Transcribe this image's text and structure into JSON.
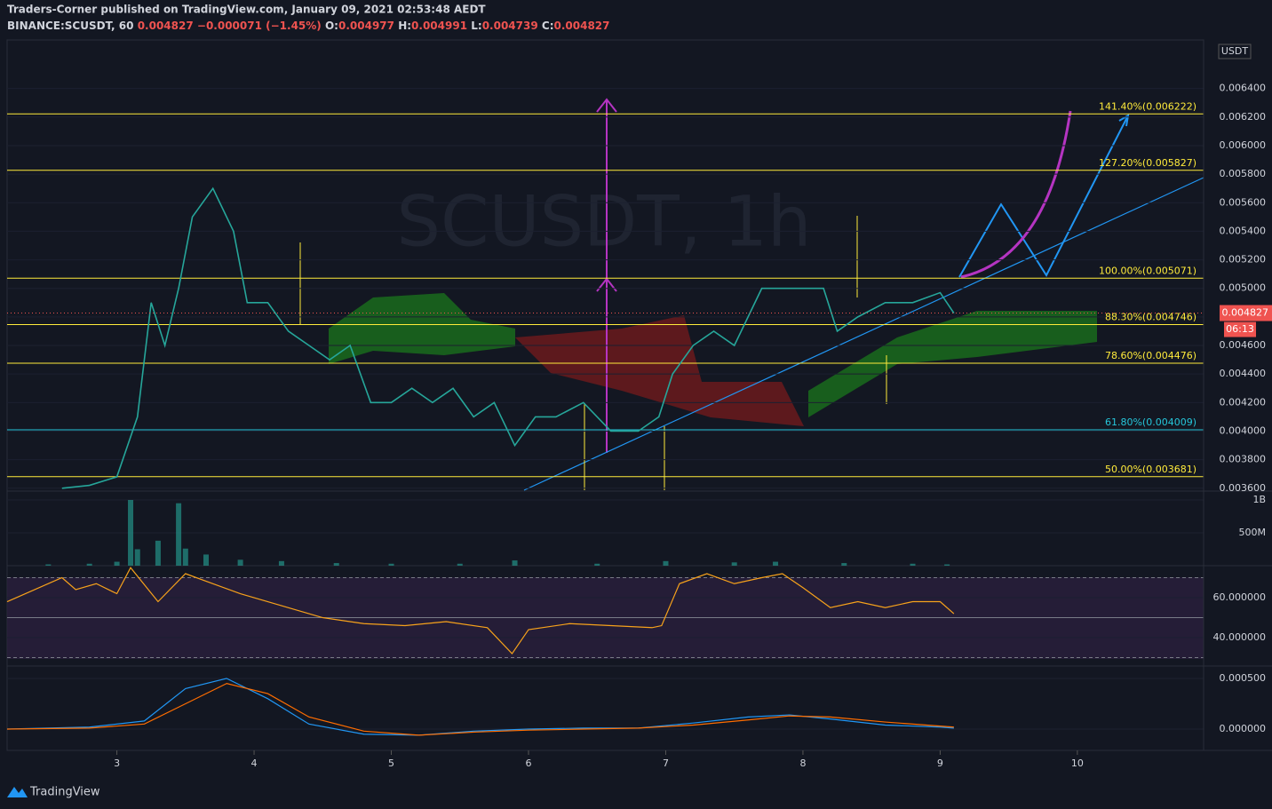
{
  "header": {
    "publisher": "Traders-Corner published on TradingView.com, January 09, 2021 02:53:48 AEDT",
    "symbol": "BINANCE:SCUSDT, 60",
    "last": "0.004827",
    "change": "−0.000071 (−1.45%)",
    "ohlc": [
      {
        "key": "O:",
        "value": "0.004977"
      },
      {
        "key": "H:",
        "value": "0.004991"
      },
      {
        "key": "L:",
        "value": "0.004739"
      },
      {
        "key": "C:",
        "value": "0.004827"
      }
    ],
    "currency": "USDT",
    "watermark": "SCUSDT, 1h",
    "countdown": "06:13",
    "footer": "TradingView"
  },
  "chart_data": [
    {
      "type": "line",
      "name": "price",
      "color": "#26a69a",
      "x": [
        2.6,
        2.8,
        3.0,
        3.15,
        3.25,
        3.35,
        3.45,
        3.55,
        3.7,
        3.85,
        3.95,
        4.1,
        4.25,
        4.4,
        4.55,
        4.7,
        4.85,
        5.0,
        5.15,
        5.3,
        5.45,
        5.6,
        5.75,
        5.9,
        6.05,
        6.2,
        6.4,
        6.6,
        6.8,
        6.95,
        7.05,
        7.2,
        7.35,
        7.5,
        7.6,
        7.7,
        7.85,
        8.0,
        8.15,
        8.25,
        8.4,
        8.6,
        8.8,
        9.0,
        9.1
      ],
      "values": [
        0.0036,
        0.00362,
        0.00368,
        0.0041,
        0.0049,
        0.0046,
        0.005,
        0.0055,
        0.0057,
        0.0054,
        0.0049,
        0.0049,
        0.0047,
        0.0046,
        0.0045,
        0.0046,
        0.0042,
        0.0042,
        0.0043,
        0.0042,
        0.0043,
        0.0041,
        0.0042,
        0.0039,
        0.0041,
        0.0041,
        0.0042,
        0.004,
        0.004,
        0.0041,
        0.0044,
        0.0046,
        0.0047,
        0.0046,
        0.0048,
        0.005,
        0.005,
        0.005,
        0.005,
        0.0047,
        0.0048,
        0.0049,
        0.0049,
        0.00497,
        0.004827
      ],
      "ylim": [
        0.00358,
        0.00674
      ],
      "yticks": [
        {
          "value": 0.0036,
          "label": "0.003600"
        },
        {
          "value": 0.0038,
          "label": "0.003800"
        },
        {
          "value": 0.004,
          "label": "0.004000"
        },
        {
          "value": 0.0042,
          "label": "0.004200"
        },
        {
          "value": 0.0044,
          "label": "0.004400"
        },
        {
          "value": 0.0046,
          "label": "0.004600"
        },
        {
          "value": 0.0048,
          "label": "0.004800"
        },
        {
          "value": 0.005,
          "label": "0.005000"
        },
        {
          "value": 0.0052,
          "label": "0.005200"
        },
        {
          "value": 0.0054,
          "label": "0.005400"
        },
        {
          "value": 0.0056,
          "label": "0.005600"
        },
        {
          "value": 0.0058,
          "label": "0.005800"
        },
        {
          "value": 0.006,
          "label": "0.006000"
        },
        {
          "value": 0.0062,
          "label": "0.006200"
        },
        {
          "value": 0.0064,
          "label": "0.006400"
        }
      ],
      "last_price": 0.004827,
      "fib_levels": [
        {
          "value": 0.006222,
          "label": "141.40%(0.006222)"
        },
        {
          "value": 0.005827,
          "label": "127.20%(0.005827)"
        },
        {
          "value": 0.005071,
          "label": "100.00%(0.005071)"
        },
        {
          "value": 0.004746,
          "label": "88.30%(0.004746)"
        },
        {
          "value": 0.004476,
          "label": "78.60%(0.004476)"
        },
        {
          "value": 0.004009,
          "label": "61.80%(0.004009)"
        },
        {
          "value": 0.003681,
          "label": "50.00%(0.003681)"
        }
      ],
      "fib_colors": [
        "#ffeb3b",
        "#ffeb3b",
        "#ffeb3b",
        "#ffeb3b",
        "#ffeb3b",
        "#26c6da",
        "#ffeb3b"
      ]
    },
    {
      "type": "bar",
      "name": "volume",
      "color": "#26a69a",
      "x": [
        2.5,
        2.8,
        3.0,
        3.1,
        3.15,
        3.3,
        3.45,
        3.5,
        3.65,
        3.9,
        4.2,
        4.6,
        5.0,
        5.5,
        5.9,
        6.5,
        7.0,
        7.5,
        7.8,
        8.3,
        8.8,
        9.05
      ],
      "values": [
        20000000,
        30000000,
        60000000,
        1000000000,
        250000000,
        380000000,
        950000000,
        260000000,
        170000000,
        90000000,
        70000000,
        40000000,
        30000000,
        30000000,
        80000000,
        30000000,
        70000000,
        50000000,
        60000000,
        40000000,
        30000000,
        20000000
      ],
      "ylim": [
        0,
        1108000000
      ],
      "yticks": [
        {
          "value": 500000000,
          "label": "500M"
        },
        {
          "value": 1000000000,
          "label": "1B"
        }
      ]
    },
    {
      "type": "line",
      "name": "rsi",
      "color": "#f7a21b",
      "x": [
        2.2,
        2.6,
        2.7,
        2.85,
        3.0,
        3.1,
        3.3,
        3.5,
        3.7,
        3.9,
        4.2,
        4.5,
        4.8,
        5.1,
        5.4,
        5.7,
        5.88,
        6.0,
        6.3,
        6.6,
        6.9,
        6.97,
        7.1,
        7.3,
        7.5,
        7.7,
        7.85,
        8.0,
        8.2,
        8.4,
        8.6,
        8.8,
        9.0,
        9.1
      ],
      "values": [
        58,
        70,
        64,
        67,
        62,
        75,
        58,
        72,
        67,
        62,
        56,
        50,
        47,
        46,
        48,
        45,
        32,
        44,
        47,
        46,
        45,
        46,
        67,
        72,
        67,
        70,
        72,
        65,
        55,
        58,
        55,
        58,
        58,
        52
      ],
      "ylim": [
        25.8,
        76
      ],
      "yticks": [
        {
          "value": 40,
          "label": "40.000000"
        },
        {
          "value": 60,
          "label": "60.000000"
        }
      ],
      "bands": [
        30,
        50,
        70
      ]
    },
    {
      "type": "line",
      "name": "macd",
      "x": [
        2.2,
        2.8,
        3.2,
        3.5,
        3.8,
        4.1,
        4.4,
        4.8,
        5.2,
        5.6,
        6.0,
        6.4,
        6.8,
        7.2,
        7.6,
        7.9,
        8.2,
        8.6,
        9.0,
        9.1
      ],
      "series": [
        {
          "color": "#2196f3",
          "values": [
            0,
            2e-05,
            8e-05,
            0.0004,
            0.0005,
            0.0003,
            5e-05,
            -5e-05,
            -6e-05,
            -2e-05,
            0,
            1e-05,
            1e-05,
            6e-05,
            0.00012,
            0.00014,
            0.0001,
            4e-05,
            2e-05,
            1e-05
          ]
        },
        {
          "color": "#ff6d00",
          "values": [
            0,
            1e-05,
            5e-05,
            0.00025,
            0.00045,
            0.00035,
            0.00012,
            -2e-05,
            -6e-05,
            -3e-05,
            -1e-05,
            0,
            1e-05,
            4e-05,
            9e-05,
            0.00013,
            0.00012,
            7e-05,
            3e-05,
            2e-05
          ]
        }
      ],
      "ylim": [
        -0.00021,
        0.000605
      ],
      "yticks": [
        {
          "value": 0,
          "label": "0.000000"
        },
        {
          "value": 0.0005,
          "label": "0.000500"
        }
      ],
      "xlim": [
        2.2,
        10.92
      ],
      "xticks": [
        3,
        4,
        5,
        6,
        7,
        8,
        9,
        10
      ]
    }
  ]
}
